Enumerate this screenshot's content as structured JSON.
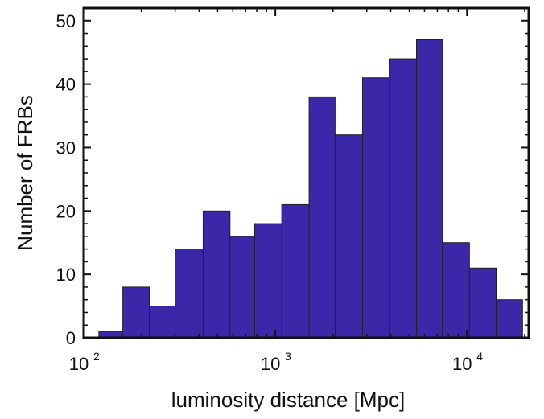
{
  "chart_data": {
    "type": "bar",
    "xlabel": "luminosity distance [Mpc]",
    "ylabel": "Number of FRBs",
    "x_scale": "log",
    "xlim": [
      100,
      21000
    ],
    "ylim": [
      0,
      52
    ],
    "grid": false,
    "bar_color": "#3a28a8",
    "x_ticks": [
      {
        "base": "10",
        "exp": "2",
        "value": 100
      },
      {
        "base": "10",
        "exp": "3",
        "value": 1000
      },
      {
        "base": "10",
        "exp": "4",
        "value": 10000
      }
    ],
    "y_ticks": [
      0,
      10,
      20,
      30,
      40,
      50
    ],
    "bin_edges": [
      120,
      160,
      220,
      300,
      420,
      580,
      780,
      1080,
      1500,
      2050,
      2850,
      3950,
      5450,
      7450,
      10300,
      14200,
      19500
    ],
    "values": [
      1,
      8,
      5,
      14,
      20,
      16,
      18,
      21,
      38,
      32,
      41,
      44,
      47,
      15,
      11,
      6
    ]
  }
}
